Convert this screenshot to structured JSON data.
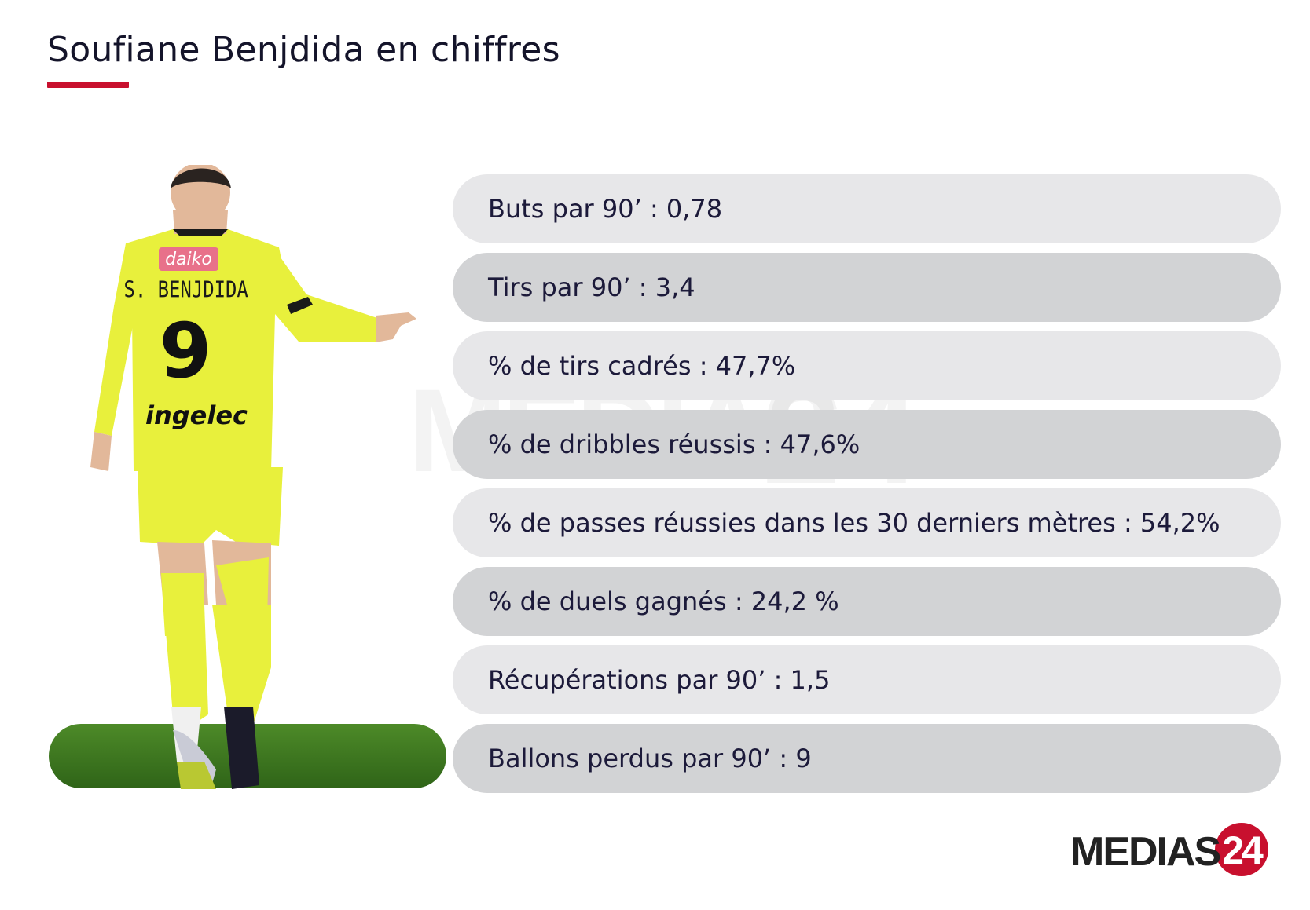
{
  "title": "Soufiane Benjdida en chiffres",
  "stats": [
    "Buts par 90’ : 0,78",
    "Tirs par 90’ : 3,4",
    "% de tirs cadrés : 47,7%",
    "% de dribbles réussis : 47,6%",
    "% de passes réussies dans les 30 derniers mètres : 54,2%",
    "% de duels gagnés : 24,2 %",
    "Récupérations par 90’ : 1,5",
    "Ballons perdus par 90’ : 9"
  ],
  "player_image": {
    "jersey_sponsor": "daiko",
    "jersey_name": "S. BENJDIDA",
    "jersey_number": "9",
    "jersey_brand": "ingelec"
  },
  "logo": {
    "text": "MEDIAS",
    "number": "24"
  },
  "colors": {
    "accent": "#c8102e",
    "row_light": "#e7e7e9",
    "row_dark": "#d2d3d5",
    "text": "#1c1a3a",
    "jersey": "#e8f03c",
    "grass": "#3f7a1f"
  }
}
